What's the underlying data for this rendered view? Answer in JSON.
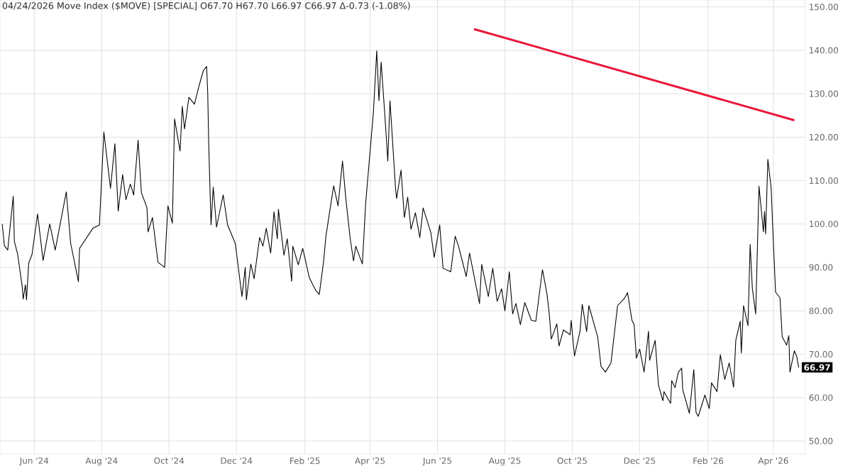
{
  "chart_data": {
    "type": "line",
    "title": "04/24/2026 Move Index ($MOVE) [SPECIAL] O67.70 H67.70 L66.97 C66.97 Δ-0.73 (-1.08%)",
    "xlim": [
      "2024-05-01",
      "2026-04-30"
    ],
    "ylim": [
      47,
      151.6
    ],
    "xticks": [
      {
        "value": "2024-06-01",
        "label": "Jun '24"
      },
      {
        "value": "2024-08-01",
        "label": "Aug '24"
      },
      {
        "value": "2024-10-01",
        "label": "Oct '24"
      },
      {
        "value": "2024-12-01",
        "label": "Dec '24"
      },
      {
        "value": "2025-02-01",
        "label": "Feb '25"
      },
      {
        "value": "2025-04-01",
        "label": "Apr '25"
      },
      {
        "value": "2025-06-01",
        "label": "Jun '25"
      },
      {
        "value": "2025-08-01",
        "label": "Aug '25"
      },
      {
        "value": "2025-10-01",
        "label": "Oct '25"
      },
      {
        "value": "2025-12-01",
        "label": "Dec '25"
      },
      {
        "value": "2026-02-01",
        "label": "Feb '26"
      },
      {
        "value": "2026-04-01",
        "label": "Apr '26"
      }
    ],
    "yticks": [
      {
        "value": 50,
        "label": "50.00"
      },
      {
        "value": 60,
        "label": "60.00"
      },
      {
        "value": 70,
        "label": "70.00"
      },
      {
        "value": 80,
        "label": "80.00"
      },
      {
        "value": 90,
        "label": "90.00"
      },
      {
        "value": 100,
        "label": "100.00"
      },
      {
        "value": 110,
        "label": "110.00"
      },
      {
        "value": 120,
        "label": "120.00"
      },
      {
        "value": 130,
        "label": "130.00"
      },
      {
        "value": 140,
        "label": "140.00"
      },
      {
        "value": 150,
        "label": "150.00"
      }
    ],
    "grid": true,
    "annotations": [
      {
        "text": "66.97",
        "x": "2026-04-24",
        "y": 66.97
      }
    ],
    "series": [
      {
        "color": "#000000",
        "x": [
          "2024-05-03",
          "2024-05-05",
          "2024-05-08",
          "2024-05-13",
          "2024-05-14",
          "2024-05-17",
          "2024-05-21",
          "2024-05-22",
          "2024-05-24",
          "2024-05-25",
          "2024-05-27",
          "2024-05-30",
          "2024-06-04",
          "2024-06-09",
          "2024-06-15",
          "2024-06-20",
          "2024-06-30",
          "2024-07-04",
          "2024-07-11",
          "2024-07-12",
          "2024-07-24",
          "2024-07-30",
          "2024-08-03",
          "2024-08-09",
          "2024-08-13",
          "2024-08-16",
          "2024-08-20",
          "2024-08-23",
          "2024-08-27",
          "2024-08-30",
          "2024-09-03",
          "2024-09-06",
          "2024-09-11",
          "2024-09-12",
          "2024-09-16",
          "2024-09-21",
          "2024-09-27",
          "2024-09-30",
          "2024-10-04",
          "2024-10-06",
          "2024-10-11",
          "2024-10-13",
          "2024-10-15",
          "2024-10-19",
          "2024-10-24",
          "2024-10-28",
          "2024-11-01",
          "2024-11-04",
          "2024-11-05",
          "2024-11-06",
          "2024-11-08",
          "2024-11-10",
          "2024-11-13",
          "2024-11-19",
          "2024-11-23",
          "2024-11-30",
          "2024-12-06",
          "2024-12-09",
          "2024-12-10",
          "2024-12-14",
          "2024-12-17",
          "2024-12-22",
          "2024-12-25",
          "2024-12-28",
          "2025-01-01",
          "2025-01-04",
          "2025-01-07",
          "2025-01-08",
          "2025-01-13",
          "2025-01-16",
          "2025-01-20",
          "2025-01-21",
          "2025-01-26",
          "2025-01-30",
          "2025-02-05",
          "2025-02-11",
          "2025-02-14",
          "2025-02-18",
          "2025-02-20",
          "2025-02-27",
          "2025-03-03",
          "2025-03-07",
          "2025-03-10",
          "2025-03-14",
          "2025-03-17",
          "2025-03-19",
          "2025-03-25",
          "2025-03-28",
          "2025-04-04",
          "2025-04-07",
          "2025-04-09",
          "2025-04-11",
          "2025-04-15",
          "2025-04-17",
          "2025-04-19",
          "2025-04-24",
          "2025-04-25",
          "2025-04-29",
          "2025-05-02",
          "2025-05-05",
          "2025-05-08",
          "2025-05-12",
          "2025-05-16",
          "2025-05-19",
          "2025-05-26",
          "2025-05-29",
          "2025-06-03",
          "2025-06-06",
          "2025-06-13",
          "2025-06-17",
          "2025-06-20",
          "2025-06-27",
          "2025-06-30",
          "2025-07-09",
          "2025-07-11",
          "2025-07-17",
          "2025-07-21",
          "2025-07-25",
          "2025-07-29",
          "2025-08-01",
          "2025-08-05",
          "2025-08-08",
          "2025-08-11",
          "2025-08-15",
          "2025-08-19",
          "2025-08-25",
          "2025-08-29",
          "2025-09-04",
          "2025-09-08",
          "2025-09-10",
          "2025-09-12",
          "2025-09-17",
          "2025-09-19",
          "2025-09-23",
          "2025-09-29",
          "2025-09-30",
          "2025-10-03",
          "2025-10-08",
          "2025-10-10",
          "2025-10-14",
          "2025-10-16",
          "2025-10-24",
          "2025-10-27",
          "2025-10-31",
          "2025-11-05",
          "2025-11-07",
          "2025-11-11",
          "2025-11-17",
          "2025-11-20",
          "2025-11-24",
          "2025-11-26",
          "2025-11-28",
          "2025-12-01",
          "2025-12-05",
          "2025-12-09",
          "2025-12-10",
          "2025-12-15",
          "2025-12-18",
          "2025-12-22",
          "2025-12-23",
          "2025-12-29",
          "2025-12-30",
          "2026-01-02",
          "2026-01-05",
          "2026-01-08",
          "2026-01-09",
          "2026-01-15",
          "2026-01-19",
          "2026-01-21",
          "2026-01-23",
          "2026-01-29",
          "2026-02-02",
          "2026-02-04",
          "2026-02-09",
          "2026-02-12",
          "2026-02-16",
          "2026-02-20",
          "2026-02-24",
          "2026-02-26",
          "2026-03-02",
          "2026-03-03",
          "2026-03-05",
          "2026-03-09",
          "2026-03-11",
          "2026-03-13",
          "2026-03-16",
          "2026-03-19",
          "2026-03-23",
          "2026-03-24",
          "2026-03-25",
          "2026-03-27",
          "2026-03-30",
          "2026-04-01",
          "2026-04-03",
          "2026-04-07",
          "2026-04-09",
          "2026-04-13",
          "2026-04-15",
          "2026-04-16",
          "2026-04-20",
          "2026-04-22",
          "2026-04-24"
        ],
        "values": [
          100,
          95,
          94,
          106.4,
          96,
          93,
          85.8,
          82.7,
          86,
          82.5,
          91,
          93,
          102.3,
          91.6,
          100,
          94,
          107.4,
          95.5,
          86.7,
          94.4,
          99,
          99.8,
          121.2,
          108.2,
          118.5,
          103,
          111.4,
          105.6,
          109.2,
          106.7,
          119.3,
          107.2,
          103.8,
          98.2,
          101.5,
          91.2,
          90,
          104.2,
          100.2,
          124.2,
          116.8,
          127.1,
          121.9,
          129.2,
          127.6,
          131.7,
          135.3,
          136.3,
          130.4,
          117.6,
          99.8,
          108.5,
          99.3,
          106.7,
          99.8,
          95.5,
          83.3,
          90,
          82.5,
          90.8,
          87.4,
          96.9,
          94.9,
          99,
          93.3,
          102.8,
          96.6,
          103.4,
          92.8,
          96.6,
          86.8,
          94.9,
          90.6,
          94.4,
          87.6,
          84.6,
          83.8,
          91.6,
          97.2,
          108.8,
          104.2,
          114.5,
          105.9,
          96.6,
          91.5,
          94.9,
          90.8,
          104.8,
          125.8,
          139.9,
          128.4,
          137.3,
          122.6,
          114.5,
          128.4,
          108.3,
          105.9,
          112.4,
          101.5,
          106.2,
          98.8,
          102.6,
          96.9,
          103.7,
          98,
          92.3,
          99.8,
          89.8,
          89,
          97.2,
          94.9,
          87.9,
          93.3,
          81.7,
          90.7,
          83.3,
          89.8,
          82.2,
          85.1,
          80,
          89,
          79.3,
          81.7,
          76.8,
          81.9,
          77.8,
          77.6,
          89.5,
          84,
          79.7,
          73.5,
          77,
          71.9,
          75.6,
          74.5,
          77.8,
          69.6,
          75.3,
          81.5,
          75.2,
          81.2,
          74,
          67.2,
          65.9,
          68,
          72.4,
          81.2,
          82.8,
          84.2,
          77.8,
          76.8,
          69.1,
          71.2,
          65.9,
          75.3,
          68.6,
          73.2,
          62.9,
          59.3,
          61.4,
          58.7,
          63.9,
          62.3,
          65.9,
          66.8,
          61.8,
          56.4,
          66.5,
          56.6,
          55.7,
          60.6,
          57.5,
          63.4,
          61.4,
          69.9,
          64.2,
          68,
          62.4,
          73.2,
          77.6,
          70.3,
          81.2,
          76.6,
          95.3,
          85.1,
          79.3,
          108.7,
          98.2,
          102.9,
          97.7,
          114.9,
          108.3,
          95.8,
          84.3,
          83,
          74,
          72.1,
          74.3,
          65.9,
          70.8,
          69.6,
          66.97
        ]
      },
      {
        "color": "#e8173a",
        "x": [
          "2025-07-04",
          "2026-04-20"
        ],
        "values": [
          144.9,
          123.9
        ]
      }
    ]
  }
}
